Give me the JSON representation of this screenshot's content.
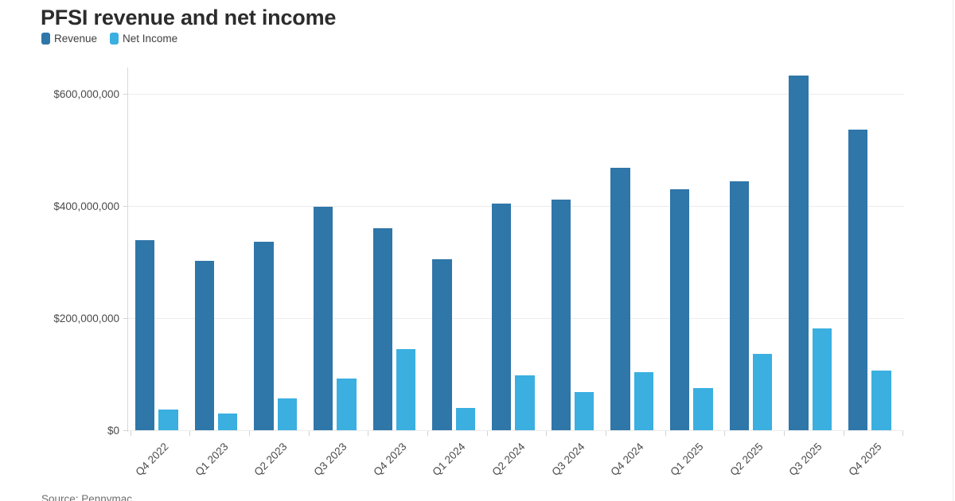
{
  "page": {
    "title": "PFSI revenue and net income",
    "source_note": "Source: Pennymac"
  },
  "chart_data": {
    "type": "bar",
    "title": "PFSI revenue and net income",
    "categories": [
      "Q4 2022",
      "Q1 2023",
      "Q2 2023",
      "Q3 2023",
      "Q4 2023",
      "Q1 2024",
      "Q2 2024",
      "Q3 2024",
      "Q4 2024",
      "Q1 2025",
      "Q2 2025",
      "Q3 2025",
      "Q4 2025"
    ],
    "series": [
      {
        "name": "Revenue",
        "color": "#2f76a9",
        "values": [
          340000000,
          303000000,
          337000000,
          400000000,
          362000000,
          306000000,
          406000000,
          412000000,
          470000000,
          431000000,
          445000000,
          634000000,
          538000000
        ]
      },
      {
        "name": "Net Income",
        "color": "#3aafe0",
        "values": [
          38000000,
          30000000,
          58000000,
          93000000,
          145000000,
          40000000,
          98000000,
          69000000,
          105000000,
          76000000,
          137000000,
          182000000,
          107000000
        ]
      }
    ],
    "xlabel": "",
    "ylabel": "",
    "ylim": [
      0,
      650000000
    ],
    "yticks": [
      {
        "value": 0,
        "label": "$0"
      },
      {
        "value": 200000000,
        "label": "$200,000,000"
      },
      {
        "value": 400000000,
        "label": "$400,000,000"
      },
      {
        "value": 600000000,
        "label": "$600,000,000"
      }
    ],
    "grid": true,
    "legend_position": "top-left"
  }
}
